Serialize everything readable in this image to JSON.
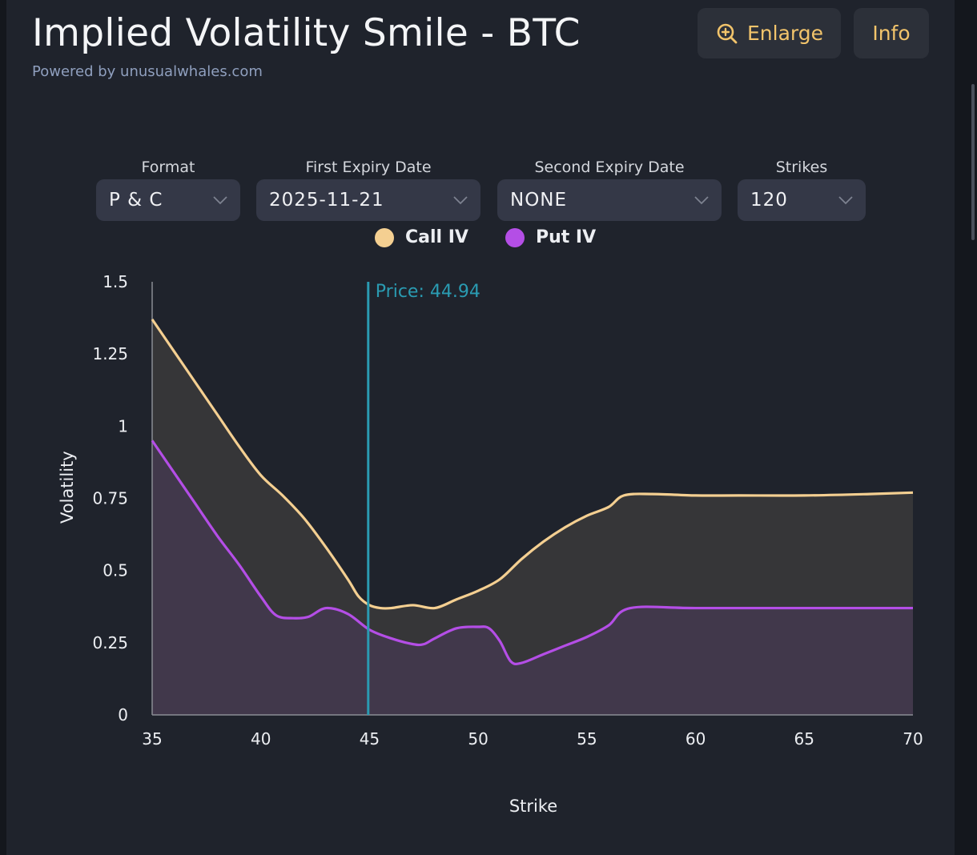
{
  "header": {
    "title": "Implied Volatility Smile - BTC",
    "subtitle": "Powered by unusualwhales.com",
    "enlarge_label": "Enlarge",
    "info_label": "Info"
  },
  "controls": [
    {
      "name": "format",
      "label": "Format",
      "value": "P & C"
    },
    {
      "name": "first-expiry",
      "label": "First Expiry Date",
      "value": "2025-11-21"
    },
    {
      "name": "second-expiry",
      "label": "Second Expiry Date",
      "value": "NONE"
    },
    {
      "name": "strikes",
      "label": "Strikes",
      "value": "120"
    }
  ],
  "icons": {
    "enlarge": "zoom-in-icon",
    "dropdown": "chevron-down-icon"
  },
  "colors": {
    "call": "#f4cf91",
    "put": "#b44ee6",
    "price_line": "#2a9bb2",
    "accent": "#f2c46b",
    "call_fill": "#363638",
    "put_fill": "#41384b"
  },
  "chart_data": {
    "type": "area",
    "title": "",
    "xlabel": "Strike",
    "ylabel": "Volatility",
    "xlim": [
      35,
      70
    ],
    "ylim": [
      0,
      1.5
    ],
    "xticks": [
      35,
      40,
      45,
      50,
      55,
      60,
      65,
      70
    ],
    "yticks": [
      0,
      0.25,
      0.5,
      0.75,
      1,
      1.25,
      1.5
    ],
    "ytick_labels": [
      "0",
      "0.25",
      "0.5",
      "0.75",
      "1",
      "1.25",
      "1.5"
    ],
    "price": 44.94,
    "price_label": "Price: 44.94",
    "series": [
      {
        "name": "Call IV",
        "x": [
          35,
          36,
          37,
          38,
          39,
          40,
          41,
          42,
          43,
          44,
          44.5,
          45,
          45.5,
          46,
          47,
          48,
          49,
          50,
          51,
          52,
          53,
          54,
          55,
          56,
          56.7,
          58,
          60,
          62,
          65,
          68,
          70
        ],
        "values": [
          1.37,
          1.26,
          1.15,
          1.04,
          0.93,
          0.83,
          0.76,
          0.68,
          0.58,
          0.47,
          0.41,
          0.38,
          0.37,
          0.37,
          0.38,
          0.37,
          0.4,
          0.43,
          0.47,
          0.54,
          0.6,
          0.65,
          0.69,
          0.72,
          0.76,
          0.765,
          0.76,
          0.76,
          0.76,
          0.765,
          0.77
        ]
      },
      {
        "name": "Put IV",
        "x": [
          35,
          36,
          37,
          38,
          39,
          40,
          40.7,
          41.5,
          42.2,
          43,
          44,
          45,
          46,
          47,
          47.5,
          48,
          49,
          50,
          50.5,
          51,
          51.5,
          52,
          53,
          54,
          55,
          56,
          57,
          60,
          65,
          70
        ],
        "values": [
          0.95,
          0.84,
          0.73,
          0.62,
          0.52,
          0.41,
          0.345,
          0.335,
          0.34,
          0.37,
          0.35,
          0.295,
          0.265,
          0.245,
          0.245,
          0.265,
          0.3,
          0.305,
          0.3,
          0.255,
          0.185,
          0.18,
          0.21,
          0.24,
          0.27,
          0.31,
          0.37,
          0.37,
          0.37,
          0.37
        ]
      }
    ]
  }
}
